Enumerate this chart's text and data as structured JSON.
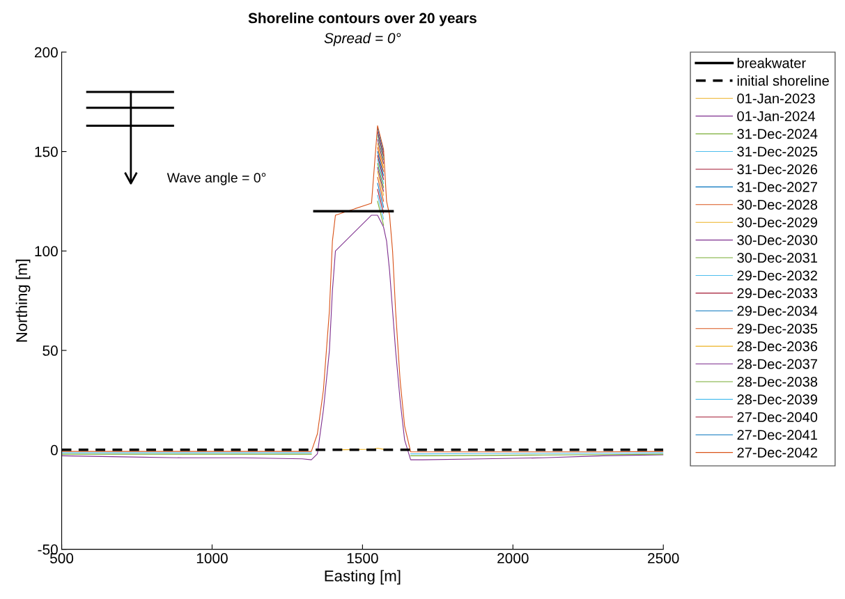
{
  "chart_data": {
    "type": "line",
    "title": "Shoreline contours over 20 years",
    "subtitle": "Spread = 0°",
    "xlabel": "Easting [m]",
    "ylabel": "Northing [m]",
    "annotations": [
      "Wave angle = 0°"
    ],
    "xlim": [
      500,
      2500
    ],
    "ylim": [
      -50,
      200
    ],
    "xticks": [
      500,
      1000,
      1500,
      2000,
      2500
    ],
    "yticks": [
      -50,
      0,
      50,
      100,
      150,
      200
    ],
    "grid": false,
    "legend": "top right",
    "marker": "none",
    "x": [
      500,
      700,
      900,
      1100,
      1300,
      1330,
      1350,
      1370,
      1390,
      1400,
      1410,
      1530,
      1550,
      1570,
      1580,
      1590,
      1600,
      1610,
      1625,
      1640,
      1660,
      1700,
      1900,
      2100,
      2300,
      2500
    ],
    "series": [
      {
        "name": "breakwater",
        "color": "#000000",
        "line_style": "solid",
        "x": [
          1340,
          1600
        ],
        "values": [
          120,
          120
        ]
      },
      {
        "name": "initial shoreline",
        "color": "#000000",
        "line_style": "dashed",
        "x": [
          500,
          2500
        ],
        "values": [
          0,
          0
        ]
      },
      {
        "name": "01-Jan-2023",
        "color": "#EDB120",
        "values": [
          null,
          null,
          null,
          null,
          null,
          null,
          null,
          null,
          null,
          null,
          0,
          0.3,
          0.8,
          0.3,
          null,
          null,
          null,
          null,
          null,
          null,
          null,
          null,
          null,
          null,
          null,
          null
        ]
      },
      {
        "name": "01-Jan-2024",
        "color": "#7E2F8E",
        "values": [
          -3,
          -3.5,
          -4,
          -4,
          -4.5,
          -5,
          -2,
          20,
          50,
          80,
          100,
          118,
          118,
          112,
          105,
          90,
          70,
          50,
          25,
          5,
          -5,
          -5,
          -4.5,
          -4,
          -3,
          -2.5
        ]
      },
      {
        "name": "31-Dec-2024",
        "color": "#77AC30",
        "values": [
          -2.2,
          -2.2,
          -2.2,
          -2.2,
          -2.2,
          -2.2,
          null,
          null,
          null,
          null,
          null,
          null,
          125,
          113,
          null,
          null,
          null,
          null,
          null,
          null,
          -3,
          -3,
          -2.8,
          -2.6,
          -2.4,
          -2.2
        ]
      },
      {
        "name": "31-Dec-2025",
        "color": "#4DBEEE",
        "values": [
          -1.5,
          -1.5,
          -1.5,
          -1.5,
          -1.5,
          -1.5,
          null,
          null,
          null,
          null,
          null,
          null,
          128,
          116,
          null,
          null,
          null,
          null,
          null,
          null,
          -2,
          -2,
          -1.9,
          -1.8,
          -1.7,
          -1.5
        ]
      },
      {
        "name": "31-Dec-2026",
        "color": "#A2142F",
        "values": [
          null,
          null,
          null,
          null,
          null,
          null,
          null,
          null,
          null,
          null,
          null,
          null,
          131,
          119,
          null,
          null,
          null,
          null,
          null,
          null,
          null,
          null,
          null,
          null,
          null,
          null
        ]
      },
      {
        "name": "31-Dec-2027",
        "color": "#0072BD",
        "values": [
          null,
          null,
          null,
          null,
          null,
          null,
          null,
          null,
          null,
          null,
          null,
          null,
          134,
          122,
          null,
          null,
          null,
          null,
          null,
          null,
          null,
          null,
          null,
          null,
          null,
          null
        ]
      },
      {
        "name": "30-Dec-2028",
        "color": "#D95319",
        "values": [
          null,
          null,
          null,
          null,
          null,
          null,
          null,
          null,
          null,
          null,
          null,
          null,
          137,
          125,
          null,
          null,
          null,
          null,
          null,
          null,
          null,
          null,
          null,
          null,
          null,
          null
        ]
      },
      {
        "name": "30-Dec-2029",
        "color": "#EDB120",
        "values": [
          null,
          null,
          null,
          null,
          null,
          null,
          null,
          null,
          null,
          null,
          null,
          null,
          140,
          128,
          null,
          null,
          null,
          null,
          null,
          null,
          null,
          null,
          null,
          null,
          null,
          null
        ]
      },
      {
        "name": "30-Dec-2030",
        "color": "#7E2F8E",
        "values": [
          null,
          null,
          null,
          null,
          null,
          null,
          null,
          null,
          null,
          null,
          null,
          null,
          142,
          130,
          null,
          null,
          null,
          null,
          null,
          null,
          null,
          null,
          null,
          null,
          null,
          null
        ]
      },
      {
        "name": "30-Dec-2031",
        "color": "#77AC30",
        "values": [
          null,
          null,
          null,
          null,
          null,
          null,
          null,
          null,
          null,
          null,
          null,
          null,
          144,
          132,
          null,
          null,
          null,
          null,
          null,
          null,
          null,
          null,
          null,
          null,
          null,
          null
        ]
      },
      {
        "name": "29-Dec-2032",
        "color": "#4DBEEE",
        "values": [
          null,
          null,
          null,
          null,
          null,
          null,
          null,
          null,
          null,
          null,
          null,
          null,
          146,
          134,
          null,
          null,
          null,
          null,
          null,
          null,
          null,
          null,
          null,
          null,
          null,
          null
        ]
      },
      {
        "name": "29-Dec-2033",
        "color": "#A2142F",
        "values": [
          null,
          null,
          null,
          null,
          null,
          null,
          null,
          null,
          null,
          null,
          null,
          null,
          148,
          136,
          null,
          null,
          null,
          null,
          null,
          null,
          null,
          null,
          null,
          null,
          null,
          null
        ]
      },
      {
        "name": "29-Dec-2034",
        "color": "#0072BD",
        "values": [
          null,
          null,
          null,
          null,
          null,
          null,
          null,
          null,
          null,
          null,
          null,
          null,
          150,
          138,
          null,
          null,
          null,
          null,
          null,
          null,
          null,
          null,
          null,
          null,
          null,
          null
        ]
      },
      {
        "name": "29-Dec-2035",
        "color": "#D95319",
        "values": [
          null,
          null,
          null,
          null,
          null,
          null,
          null,
          null,
          null,
          null,
          null,
          null,
          152,
          140,
          null,
          null,
          null,
          null,
          null,
          null,
          null,
          null,
          null,
          null,
          null,
          null
        ]
      },
      {
        "name": "28-Dec-2036",
        "color": "#EDB120",
        "values": [
          null,
          null,
          null,
          null,
          null,
          null,
          null,
          null,
          null,
          null,
          null,
          null,
          154,
          142,
          null,
          null,
          null,
          null,
          null,
          null,
          null,
          null,
          null,
          null,
          null,
          null
        ]
      },
      {
        "name": "28-Dec-2037",
        "color": "#7E2F8E",
        "values": [
          null,
          null,
          null,
          null,
          null,
          null,
          null,
          null,
          null,
          null,
          null,
          null,
          156,
          144,
          null,
          null,
          null,
          null,
          null,
          null,
          null,
          null,
          null,
          null,
          null,
          null
        ]
      },
      {
        "name": "28-Dec-2038",
        "color": "#77AC30",
        "values": [
          null,
          null,
          null,
          null,
          null,
          null,
          null,
          null,
          null,
          null,
          null,
          null,
          158,
          146,
          null,
          null,
          null,
          null,
          null,
          null,
          null,
          null,
          null,
          null,
          null,
          null
        ]
      },
      {
        "name": "28-Dec-2039",
        "color": "#4DBEEE",
        "values": [
          null,
          null,
          null,
          null,
          null,
          null,
          null,
          null,
          null,
          null,
          null,
          null,
          159,
          147,
          null,
          null,
          null,
          null,
          null,
          null,
          null,
          null,
          null,
          null,
          null,
          null
        ]
      },
      {
        "name": "27-Dec-2040",
        "color": "#A2142F",
        "values": [
          null,
          null,
          null,
          null,
          null,
          null,
          null,
          null,
          null,
          null,
          null,
          null,
          160,
          148,
          null,
          null,
          null,
          null,
          null,
          null,
          null,
          null,
          null,
          null,
          null,
          null
        ]
      },
      {
        "name": "27-Dec-2041",
        "color": "#0072BD",
        "values": [
          null,
          null,
          null,
          null,
          null,
          null,
          null,
          null,
          null,
          null,
          null,
          null,
          162,
          150,
          null,
          null,
          null,
          null,
          null,
          null,
          null,
          null,
          null,
          null,
          null,
          null
        ]
      },
      {
        "name": "27-Dec-2042",
        "color": "#D95319",
        "values": [
          -0.8,
          -0.8,
          -0.8,
          -0.8,
          -0.8,
          -0.8,
          8,
          30,
          70,
          105,
          118,
          124,
          163,
          151,
          125,
          118,
          100,
          70,
          35,
          12,
          -1,
          -1,
          -1,
          -1,
          -1,
          -0.8
        ]
      }
    ]
  }
}
